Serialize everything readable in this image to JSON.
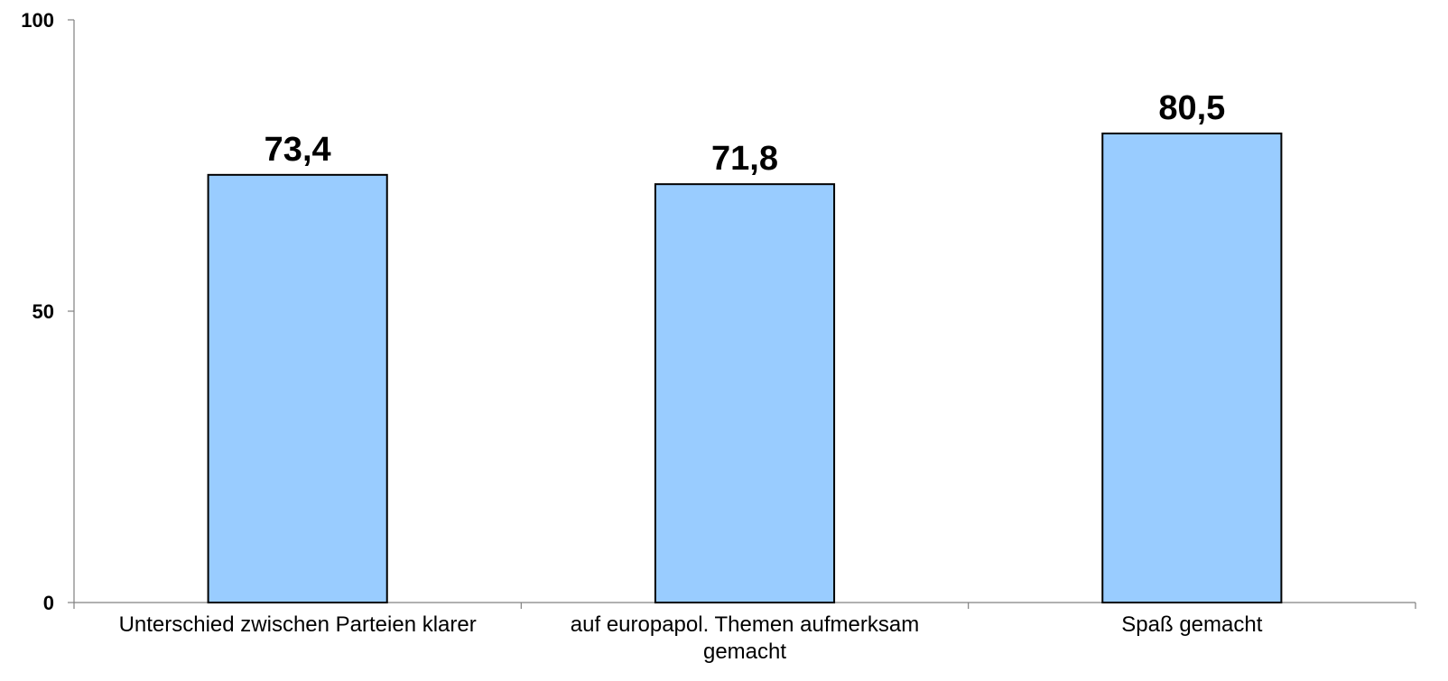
{
  "chart_data": {
    "type": "bar",
    "categories": [
      [
        "Unterschied zwischen Parteien klarer"
      ],
      [
        "auf europapol. Themen aufmerksam",
        "gemacht"
      ],
      [
        "Spaß gemacht"
      ]
    ],
    "values": [
      73.4,
      71.8,
      80.5
    ],
    "value_labels": [
      "73,4",
      "71,8",
      "80,5"
    ],
    "ylim": [
      0,
      100
    ],
    "yticks": [
      0,
      50,
      100
    ],
    "ytick_labels": [
      "0",
      "50",
      "100"
    ],
    "title": "",
    "xlabel": "",
    "ylabel": "",
    "grid": false,
    "legend": "none",
    "colors": {
      "bar_fill": "#99CCFF",
      "bar_stroke": "#000000",
      "axis": "#808080"
    }
  }
}
